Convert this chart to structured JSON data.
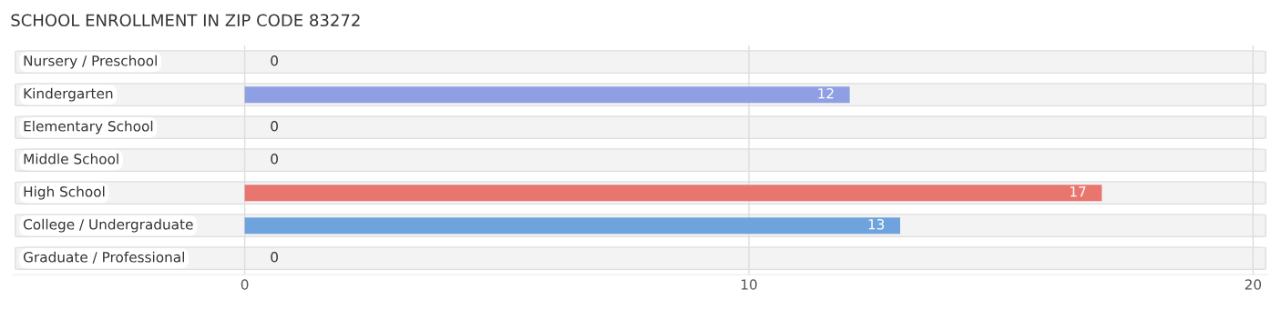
{
  "chart_data": {
    "type": "bar",
    "orientation": "horizontal",
    "title": "SCHOOL ENROLLMENT IN ZIP CODE 83272",
    "categories": [
      "Nursery / Preschool",
      "Kindergarten",
      "Elementary School",
      "Middle School",
      "High School",
      "College / Undergraduate",
      "Graduate / Professional"
    ],
    "values": [
      0,
      12,
      0,
      0,
      17,
      13,
      0
    ],
    "colors": [
      "#7dcdd4",
      "#8f9fe3",
      "#f5a3c0",
      "#f9c89b",
      "#e8766f",
      "#6fa3dd",
      "#c9a8d3"
    ],
    "xlim": [
      -4.6,
      20.3
    ],
    "xticks": [
      0,
      10,
      20
    ],
    "grid": "x",
    "data_labels": true
  }
}
